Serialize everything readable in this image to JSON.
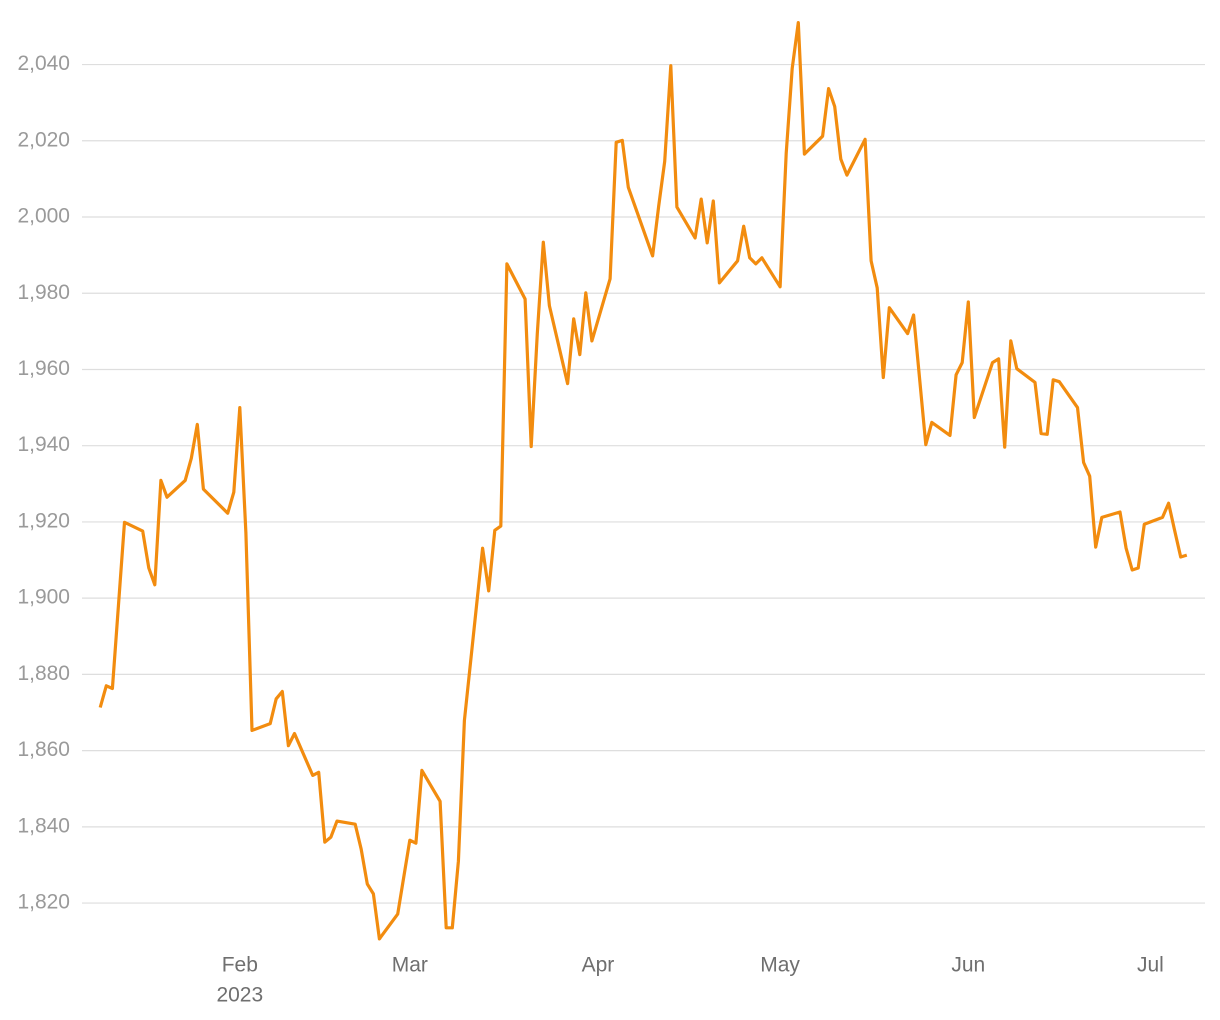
{
  "chart_data": {
    "type": "line",
    "color": "#f28c0f",
    "grid": true,
    "x": [
      9,
      10,
      11,
      13,
      16,
      17,
      18,
      19,
      20,
      23,
      24,
      25,
      26,
      30,
      31,
      32,
      33,
      34,
      37,
      38,
      39,
      40,
      41,
      44,
      45,
      46,
      47,
      48,
      51,
      52,
      53,
      54,
      55,
      58,
      60,
      61,
      62,
      65,
      66,
      67,
      68,
      69,
      72,
      73,
      74,
      75,
      76,
      79,
      80,
      81,
      82,
      83,
      86,
      87,
      88,
      89,
      90,
      93,
      94,
      95,
      96,
      100,
      101,
      102,
      103,
      104,
      107,
      108,
      109,
      110,
      111,
      114,
      115,
      116,
      117,
      118,
      121,
      122,
      123,
      124,
      125,
      128,
      129,
      130,
      131,
      132,
      135,
      136,
      137,
      138,
      139,
      142,
      143,
      145,
      146,
      149,
      150,
      151,
      152,
      153,
      156,
      157,
      158,
      159,
      160,
      163,
      164,
      165,
      166,
      167,
      170,
      171,
      172,
      173,
      174,
      177,
      178,
      179,
      180,
      181,
      184,
      185,
      186,
      187,
      188
    ],
    "values": [
      1871.3,
      1877.0,
      1876.3,
      1919.9,
      1917.6,
      1907.9,
      1903.5,
      1930.9,
      1926.5,
      1930.9,
      1936.7,
      1945.6,
      1928.6,
      1922.3,
      1927.8,
      1950.0,
      1917.1,
      1865.3,
      1867.1,
      1873.6,
      1875.5,
      1861.3,
      1864.5,
      1853.5,
      1854.3,
      1836.0,
      1837.3,
      1841.5,
      1840.7,
      1834.1,
      1825.0,
      1822.4,
      1810.6,
      1817.1,
      1836.5,
      1835.7,
      1854.8,
      1846.7,
      1813.5,
      1813.5,
      1831.0,
      1867.9,
      1913.1,
      1901.9,
      1917.8,
      1918.9,
      1987.7,
      1978.5,
      1939.8,
      1969.4,
      1993.4,
      1976.7,
      1956.3,
      1973.3,
      1963.9,
      1980.1,
      1967.5,
      1983.8,
      2019.6,
      2020.1,
      2007.8,
      1989.8,
      2002.9,
      2014.6,
      2039.7,
      2002.6,
      1994.5,
      2004.7,
      1993.2,
      2004.2,
      1982.7,
      1988.5,
      1997.6,
      1989.3,
      1987.7,
      1989.3,
      1981.7,
      2016.7,
      2039.0,
      2051.0,
      2016.5,
      2021.2,
      2033.7,
      2029.0,
      2015.2,
      2011.0,
      2020.4,
      1988.5,
      1981.4,
      1957.9,
      1976.2,
      1969.4,
      1974.3,
      1940.3,
      1946.1,
      1942.7,
      1958.6,
      1961.8,
      1977.7,
      1947.4,
      1961.8,
      1962.8,
      1939.6,
      1967.5,
      1960.2,
      1956.6,
      1943.2,
      1943.0,
      1957.3,
      1956.8,
      1950.0,
      1935.6,
      1932.0,
      1913.4,
      1921.2,
      1922.6,
      1913.1,
      1907.4,
      1907.9,
      1919.4,
      1921.2,
      1924.9,
      1917.8,
      1910.8,
      1911.3
    ],
    "xlim": [
      6,
      191
    ],
    "xticks": [
      {
        "value": 32,
        "label": "Feb"
      },
      {
        "value": 60,
        "label": "Mar"
      },
      {
        "value": 91,
        "label": "Apr"
      },
      {
        "value": 121,
        "label": "May"
      },
      {
        "value": 152,
        "label": "Jun"
      },
      {
        "value": 182,
        "label": "Jul"
      }
    ],
    "year_label": "2023",
    "ylim": [
      1809,
      2053
    ],
    "yticks": [
      {
        "value": 1820,
        "label": "1,820"
      },
      {
        "value": 1840,
        "label": "1,840"
      },
      {
        "value": 1860,
        "label": "1,860"
      },
      {
        "value": 1880,
        "label": "1,880"
      },
      {
        "value": 1900,
        "label": "1,900"
      },
      {
        "value": 1920,
        "label": "1,920"
      },
      {
        "value": 1940,
        "label": "1,940"
      },
      {
        "value": 1960,
        "label": "1,960"
      },
      {
        "value": 1980,
        "label": "1,980"
      },
      {
        "value": 2000,
        "label": "2,000"
      },
      {
        "value": 2020,
        "label": "2,020"
      },
      {
        "value": 2040,
        "label": "2,040"
      }
    ]
  }
}
